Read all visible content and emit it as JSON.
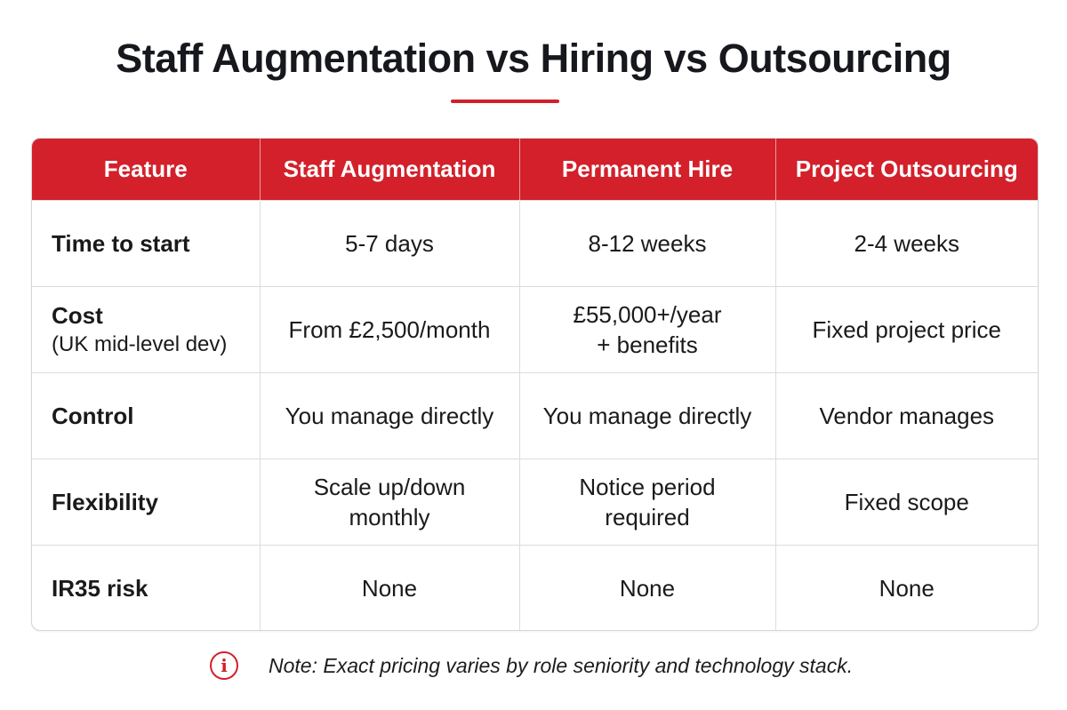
{
  "colors": {
    "accent": "#d3202a",
    "header_text": "#ffffff",
    "border": "#dcdcdc"
  },
  "title": "Staff Augmentation vs Hiring vs Outsourcing",
  "table": {
    "headers": [
      "Feature",
      "Staff Augmentation",
      "Permanent Hire",
      "Project Outsourcing"
    ],
    "rows": [
      {
        "feature": "Time to start",
        "feature_sub": "",
        "cells": [
          [
            "5-7 days"
          ],
          [
            "8-12 weeks"
          ],
          [
            "2-4 weeks"
          ]
        ]
      },
      {
        "feature": "Cost",
        "feature_sub": "(UK mid-level dev)",
        "cells": [
          [
            "From £2,500/month"
          ],
          [
            "£55,000+/year",
            "+ benefits"
          ],
          [
            "Fixed project price"
          ]
        ]
      },
      {
        "feature": "Control",
        "feature_sub": "",
        "cells": [
          [
            "You manage directly"
          ],
          [
            "You manage directly"
          ],
          [
            "Vendor manages"
          ]
        ]
      },
      {
        "feature": "Flexibility",
        "feature_sub": "",
        "cells": [
          [
            "Scale up/down",
            "monthly"
          ],
          [
            "Notice period",
            "required"
          ],
          [
            "Fixed scope"
          ]
        ]
      },
      {
        "feature": "IR35 risk",
        "feature_sub": "",
        "cells": [
          [
            "None"
          ],
          [
            "None"
          ],
          [
            "None"
          ]
        ]
      }
    ]
  },
  "note": {
    "icon": "info-icon",
    "icon_glyph": "i",
    "text": "Note: Exact pricing varies by role seniority and technology stack."
  }
}
